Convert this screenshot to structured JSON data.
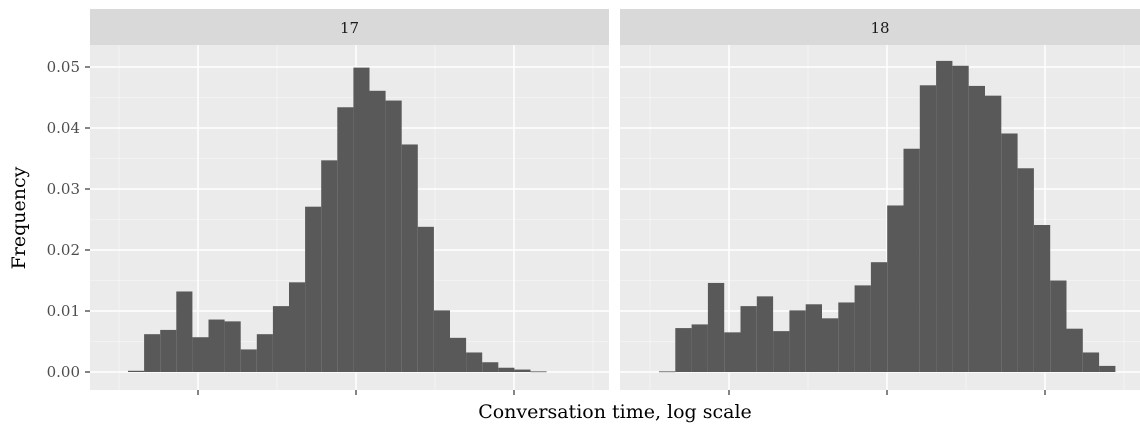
{
  "chart_data": {
    "type": "bar",
    "xlabel": "Conversation time, log scale",
    "ylabel": "Frequency",
    "ylim": [
      0,
      0.053
    ],
    "yticks": [
      "0.00",
      "0.01",
      "0.02",
      "0.03",
      "0.04",
      "0.05"
    ],
    "x_tick_labels_shown": false,
    "grid": true,
    "panels": [
      {
        "label": "17",
        "values": [
          0.0002,
          0.0062,
          0.0069,
          0.0132,
          0.0057,
          0.0086,
          0.0083,
          0.0037,
          0.0062,
          0.0108,
          0.0147,
          0.0271,
          0.0347,
          0.0434,
          0.0499,
          0.0461,
          0.0445,
          0.0373,
          0.0238,
          0.0101,
          0.0056,
          0.0032,
          0.0016,
          0.0007,
          0.0004,
          0.0001
        ]
      },
      {
        "label": "18",
        "values": [
          0.0001,
          0.0072,
          0.0078,
          0.0146,
          0.0065,
          0.0108,
          0.0124,
          0.0067,
          0.0101,
          0.0111,
          0.0088,
          0.0114,
          0.0142,
          0.018,
          0.0273,
          0.0366,
          0.047,
          0.051,
          0.0502,
          0.0469,
          0.0453,
          0.0391,
          0.0334,
          0.0241,
          0.015,
          0.0071,
          0.0032,
          0.001
        ]
      }
    ]
  }
}
